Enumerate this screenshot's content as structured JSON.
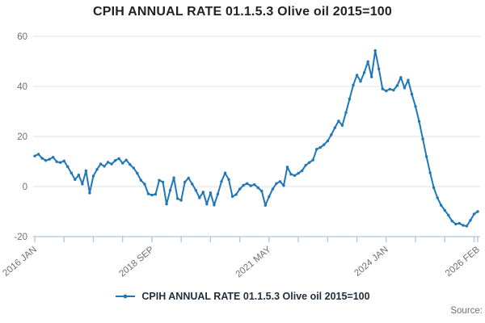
{
  "title": "CPIH ANNUAL RATE 01.1.5.3 Olive oil 2015=100",
  "legend": {
    "label": "CPIH ANNUAL RATE 01.1.5.3 Olive oil 2015=100"
  },
  "source_label": "Source:",
  "colors": {
    "line": "#2077b8",
    "grid": "#e0e0e0",
    "axis": "#b3c3de",
    "tick_text": "#6f6f6f",
    "title_text": "#222222",
    "legend_text": "#222f3d"
  },
  "chart_data": {
    "type": "line",
    "title": "CPIH ANNUAL RATE 01.1.5.3 Olive oil 2015=100",
    "series_name": "CPIH ANNUAL RATE 01.1.5.3 Olive oil 2015=100",
    "x_unit": "month",
    "x_start": "2016 JAN",
    "x_end": "2026 FEB",
    "x_tick_labels": [
      "2016 JAN",
      "2018 SEP",
      "2021 MAY",
      "2024 JAN",
      "2026 FEB"
    ],
    "x_tick_label_months": [
      0,
      32,
      64,
      96,
      121
    ],
    "y_ticks": [
      -20,
      0,
      20,
      40,
      60
    ],
    "ylim": [
      -20,
      60
    ],
    "grid": "horizontal-only",
    "legend_position": "bottom-center",
    "values": [
      12.2,
      12.9,
      11.3,
      10.4,
      10.9,
      11.7,
      9.9,
      9.6,
      10.2,
      7.9,
      5.4,
      2.8,
      4.6,
      1.0,
      6.3,
      -2.6,
      4.2,
      6.8,
      9.0,
      8.1,
      9.7,
      9.0,
      10.4,
      11.2,
      9.3,
      10.6,
      8.8,
      7.4,
      5.3,
      2.5,
      1.0,
      -2.9,
      -3.4,
      -3.1,
      2.5,
      1.8,
      -7.0,
      -1.5,
      3.5,
      -4.8,
      -5.5,
      1.8,
      3.4,
      1.0,
      -1.5,
      -4.5,
      -2.2,
      -7.0,
      -2.5,
      -7.4,
      -3.0,
      2.0,
      5.4,
      2.8,
      -4.0,
      -3.2,
      -1.0,
      0.5,
      1.2,
      0.3,
      0.8,
      -0.5,
      -1.8,
      -7.5,
      -4.0,
      -1.0,
      1.2,
      2.0,
      0.4,
      7.8,
      4.9,
      4.4,
      5.3,
      6.3,
      8.5,
      9.6,
      10.6,
      14.9,
      15.6,
      16.7,
      18.2,
      20.7,
      23.5,
      26.2,
      24.4,
      29.5,
      35.0,
      40.5,
      44.5,
      42.0,
      45.5,
      49.9,
      43.8,
      54.3,
      47.0,
      39.0,
      38.2,
      38.9,
      38.5,
      40.3,
      43.6,
      39.4,
      42.5,
      36.9,
      32.0,
      26.0,
      19.0,
      12.0,
      5.5,
      -0.5,
      -4.5,
      -7.5,
      -9.5,
      -11.5,
      -13.8,
      -15.0,
      -14.7,
      -15.5,
      -15.8,
      -13.5,
      -11.0,
      -10.0
    ]
  }
}
